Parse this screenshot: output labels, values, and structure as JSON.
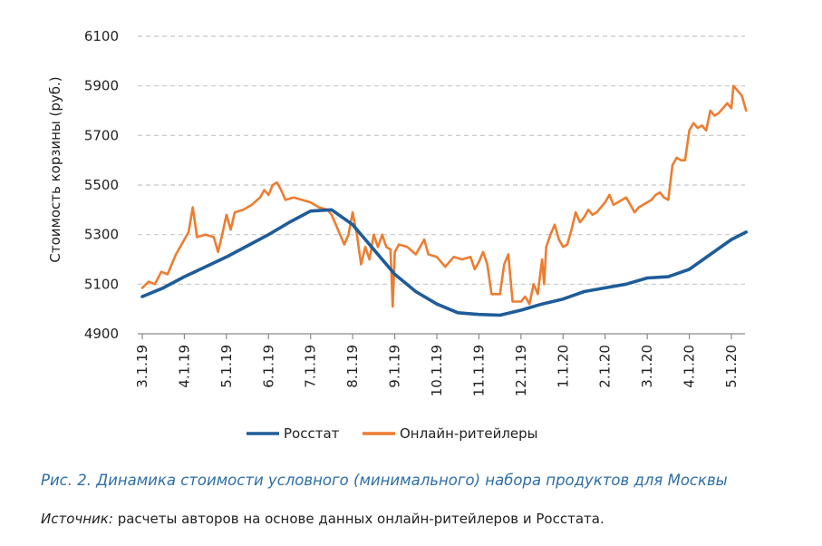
{
  "chart_data": {
    "type": "line",
    "title": "",
    "ylabel": "Стоимость корзины (руб.)",
    "xlabel": "",
    "ylim": [
      4900,
      6100
    ],
    "yticks": [
      4900,
      5100,
      5300,
      5500,
      5700,
      5900,
      6100
    ],
    "grid": "horizontal dashed",
    "legend_position": "bottom",
    "x_tick_labels": [
      "3.1.19",
      "4.1.19",
      "5.1.19",
      "6.1.19",
      "7.1.19",
      "8.1.19",
      "9.1.19",
      "10.1.19",
      "11.1.19",
      "12.1.19",
      "1.1.20",
      "2.1.20",
      "3.1.20",
      "4.1.20",
      "5.1.20"
    ],
    "x_domain": [
      0,
      14.35
    ],
    "series": [
      {
        "name": "Росстат",
        "color": "#1f5c99",
        "points": [
          [
            0,
            5050
          ],
          [
            0.5,
            5085
          ],
          [
            1,
            5130
          ],
          [
            1.5,
            5170
          ],
          [
            2,
            5210
          ],
          [
            2.5,
            5255
          ],
          [
            3,
            5300
          ],
          [
            3.5,
            5350
          ],
          [
            4,
            5395
          ],
          [
            4.5,
            5400
          ],
          [
            5,
            5340
          ],
          [
            5.5,
            5240
          ],
          [
            6,
            5140
          ],
          [
            6.5,
            5070
          ],
          [
            7,
            5020
          ],
          [
            7.5,
            4985
          ],
          [
            8,
            4978
          ],
          [
            8.5,
            4975
          ],
          [
            9,
            4995
          ],
          [
            9.5,
            5020
          ],
          [
            10,
            5040
          ],
          [
            10.5,
            5070
          ],
          [
            11,
            5085
          ],
          [
            11.5,
            5100
          ],
          [
            12,
            5125
          ],
          [
            12.5,
            5130
          ],
          [
            13,
            5160
          ],
          [
            13.5,
            5220
          ],
          [
            14,
            5280
          ],
          [
            14.35,
            5310
          ]
        ]
      },
      {
        "name": "Онлайн-ритейлеры",
        "color": "#ed7d31",
        "points": [
          [
            0,
            5085
          ],
          [
            0.15,
            5110
          ],
          [
            0.3,
            5100
          ],
          [
            0.45,
            5150
          ],
          [
            0.6,
            5140
          ],
          [
            0.8,
            5220
          ],
          [
            1,
            5280
          ],
          [
            1.1,
            5310
          ],
          [
            1.2,
            5410
          ],
          [
            1.3,
            5290
          ],
          [
            1.5,
            5300
          ],
          [
            1.7,
            5290
          ],
          [
            1.8,
            5230
          ],
          [
            1.9,
            5300
          ],
          [
            2,
            5380
          ],
          [
            2.1,
            5320
          ],
          [
            2.2,
            5390
          ],
          [
            2.4,
            5400
          ],
          [
            2.6,
            5420
          ],
          [
            2.8,
            5450
          ],
          [
            2.9,
            5480
          ],
          [
            3,
            5460
          ],
          [
            3.1,
            5500
          ],
          [
            3.2,
            5510
          ],
          [
            3.3,
            5480
          ],
          [
            3.4,
            5440
          ],
          [
            3.6,
            5450
          ],
          [
            3.8,
            5440
          ],
          [
            4,
            5430
          ],
          [
            4.2,
            5410
          ],
          [
            4.4,
            5400
          ],
          [
            4.5,
            5380
          ],
          [
            4.6,
            5340
          ],
          [
            4.7,
            5300
          ],
          [
            4.8,
            5260
          ],
          [
            4.9,
            5300
          ],
          [
            5,
            5390
          ],
          [
            5.1,
            5300
          ],
          [
            5.2,
            5180
          ],
          [
            5.3,
            5250
          ],
          [
            5.4,
            5200
          ],
          [
            5.5,
            5300
          ],
          [
            5.6,
            5250
          ],
          [
            5.7,
            5300
          ],
          [
            5.8,
            5250
          ],
          [
            5.9,
            5240
          ],
          [
            5.95,
            5010
          ],
          [
            6,
            5230
          ],
          [
            6.1,
            5260
          ],
          [
            6.3,
            5250
          ],
          [
            6.5,
            5220
          ],
          [
            6.7,
            5280
          ],
          [
            6.8,
            5220
          ],
          [
            7,
            5210
          ],
          [
            7.2,
            5170
          ],
          [
            7.4,
            5210
          ],
          [
            7.6,
            5200
          ],
          [
            7.8,
            5210
          ],
          [
            7.9,
            5160
          ],
          [
            8,
            5190
          ],
          [
            8.1,
            5230
          ],
          [
            8.2,
            5180
          ],
          [
            8.3,
            5060
          ],
          [
            8.5,
            5060
          ],
          [
            8.6,
            5180
          ],
          [
            8.7,
            5220
          ],
          [
            8.8,
            5030
          ],
          [
            9,
            5030
          ],
          [
            9.1,
            5050
          ],
          [
            9.2,
            5020
          ],
          [
            9.3,
            5100
          ],
          [
            9.4,
            5060
          ],
          [
            9.5,
            5200
          ],
          [
            9.55,
            5100
          ],
          [
            9.6,
            5250
          ],
          [
            9.7,
            5300
          ],
          [
            9.8,
            5340
          ],
          [
            9.9,
            5280
          ],
          [
            10,
            5250
          ],
          [
            10.1,
            5260
          ],
          [
            10.2,
            5320
          ],
          [
            10.3,
            5390
          ],
          [
            10.4,
            5350
          ],
          [
            10.5,
            5370
          ],
          [
            10.6,
            5400
          ],
          [
            10.7,
            5380
          ],
          [
            10.8,
            5390
          ],
          [
            10.9,
            5410
          ],
          [
            11,
            5430
          ],
          [
            11.1,
            5460
          ],
          [
            11.2,
            5420
          ],
          [
            11.3,
            5430
          ],
          [
            11.4,
            5440
          ],
          [
            11.5,
            5450
          ],
          [
            11.6,
            5420
          ],
          [
            11.7,
            5390
          ],
          [
            11.8,
            5410
          ],
          [
            11.9,
            5420
          ],
          [
            12,
            5430
          ],
          [
            12.1,
            5440
          ],
          [
            12.2,
            5460
          ],
          [
            12.3,
            5470
          ],
          [
            12.4,
            5450
          ],
          [
            12.5,
            5440
          ],
          [
            12.6,
            5580
          ],
          [
            12.7,
            5610
          ],
          [
            12.8,
            5600
          ],
          [
            12.9,
            5600
          ],
          [
            13,
            5720
          ],
          [
            13.1,
            5750
          ],
          [
            13.2,
            5730
          ],
          [
            13.3,
            5740
          ],
          [
            13.4,
            5720
          ],
          [
            13.5,
            5800
          ],
          [
            13.6,
            5780
          ],
          [
            13.7,
            5790
          ],
          [
            13.8,
            5810
          ],
          [
            13.9,
            5830
          ],
          [
            14,
            5810
          ],
          [
            14.05,
            5900
          ],
          [
            14.15,
            5880
          ],
          [
            14.25,
            5860
          ],
          [
            14.35,
            5800
          ]
        ]
      }
    ]
  },
  "caption": "Рис. 2. Динамика стоимости условного (минимального) набора продуктов для Москвы",
  "source_label": "Источник:",
  "source_text": " расчеты авторов на основе данных онлайн-ритейлеров и Росстата."
}
